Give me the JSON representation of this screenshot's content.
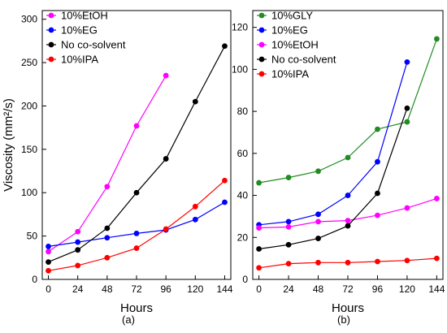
{
  "chart_data": [
    {
      "type": "line",
      "panel_label": "(a)",
      "xlabel": "Hours",
      "ylabel": "Viscosity (mm²/s)",
      "x_ticks": [
        0,
        24,
        48,
        72,
        96,
        120,
        144
      ],
      "y_ticks": [
        0,
        50,
        100,
        150,
        200,
        250,
        300
      ],
      "xlim": [
        -5,
        149
      ],
      "ylim": [
        0,
        310
      ],
      "legend_position": "top-left",
      "series": [
        {
          "name": "10%EtOH",
          "color": "#ff00ff",
          "x": [
            0,
            24,
            48,
            72,
            96
          ],
          "y": [
            32,
            55,
            107,
            177,
            235
          ]
        },
        {
          "name": "10%EG",
          "color": "#0000ff",
          "x": [
            0,
            24,
            48,
            72,
            96,
            120,
            144
          ],
          "y": [
            38,
            43,
            48,
            53,
            57,
            69,
            89
          ]
        },
        {
          "name": "No co-solvent",
          "color": "#000000",
          "x": [
            0,
            24,
            48,
            72,
            96,
            120,
            144
          ],
          "y": [
            20,
            34,
            59,
            100,
            139,
            205,
            269
          ]
        },
        {
          "name": "10%IPA",
          "color": "#ff0000",
          "x": [
            0,
            24,
            48,
            72,
            96,
            120,
            144
          ],
          "y": [
            10,
            16,
            25,
            36,
            58,
            84,
            114
          ]
        }
      ]
    },
    {
      "type": "line",
      "panel_label": "(b)",
      "xlabel": "Hours",
      "ylabel": "",
      "x_ticks": [
        0,
        24,
        48,
        72,
        96,
        120,
        144
      ],
      "y_ticks": [
        0,
        20,
        40,
        60,
        80,
        100,
        120
      ],
      "xlim": [
        -5,
        149
      ],
      "ylim": [
        0,
        128
      ],
      "legend_position": "top-left",
      "series": [
        {
          "name": "10%GLY",
          "color": "#228b22",
          "x": [
            0,
            24,
            48,
            72,
            96,
            120,
            144
          ],
          "y": [
            46,
            48.5,
            51.5,
            58,
            71.5,
            75,
            114.5
          ]
        },
        {
          "name": "10%EG",
          "color": "#0000ff",
          "x": [
            0,
            24,
            48,
            72,
            96,
            120
          ],
          "y": [
            26,
            27.5,
            31,
            40,
            56,
            103.5
          ]
        },
        {
          "name": "10%EtOH",
          "color": "#ff00ff",
          "x": [
            0,
            24,
            48,
            72,
            96,
            120,
            144
          ],
          "y": [
            24.5,
            25,
            27.5,
            28,
            30.5,
            34,
            38.5
          ]
        },
        {
          "name": "No co-solvent",
          "color": "#000000",
          "x": [
            0,
            24,
            48,
            72,
            96,
            120
          ],
          "y": [
            14.5,
            16.5,
            19.5,
            25.5,
            41,
            81.5
          ]
        },
        {
          "name": "10%IPA",
          "color": "#ff0000",
          "x": [
            0,
            24,
            48,
            72,
            96,
            120,
            144
          ],
          "y": [
            5.5,
            7.5,
            8,
            8,
            8.5,
            9,
            10
          ]
        }
      ]
    }
  ]
}
